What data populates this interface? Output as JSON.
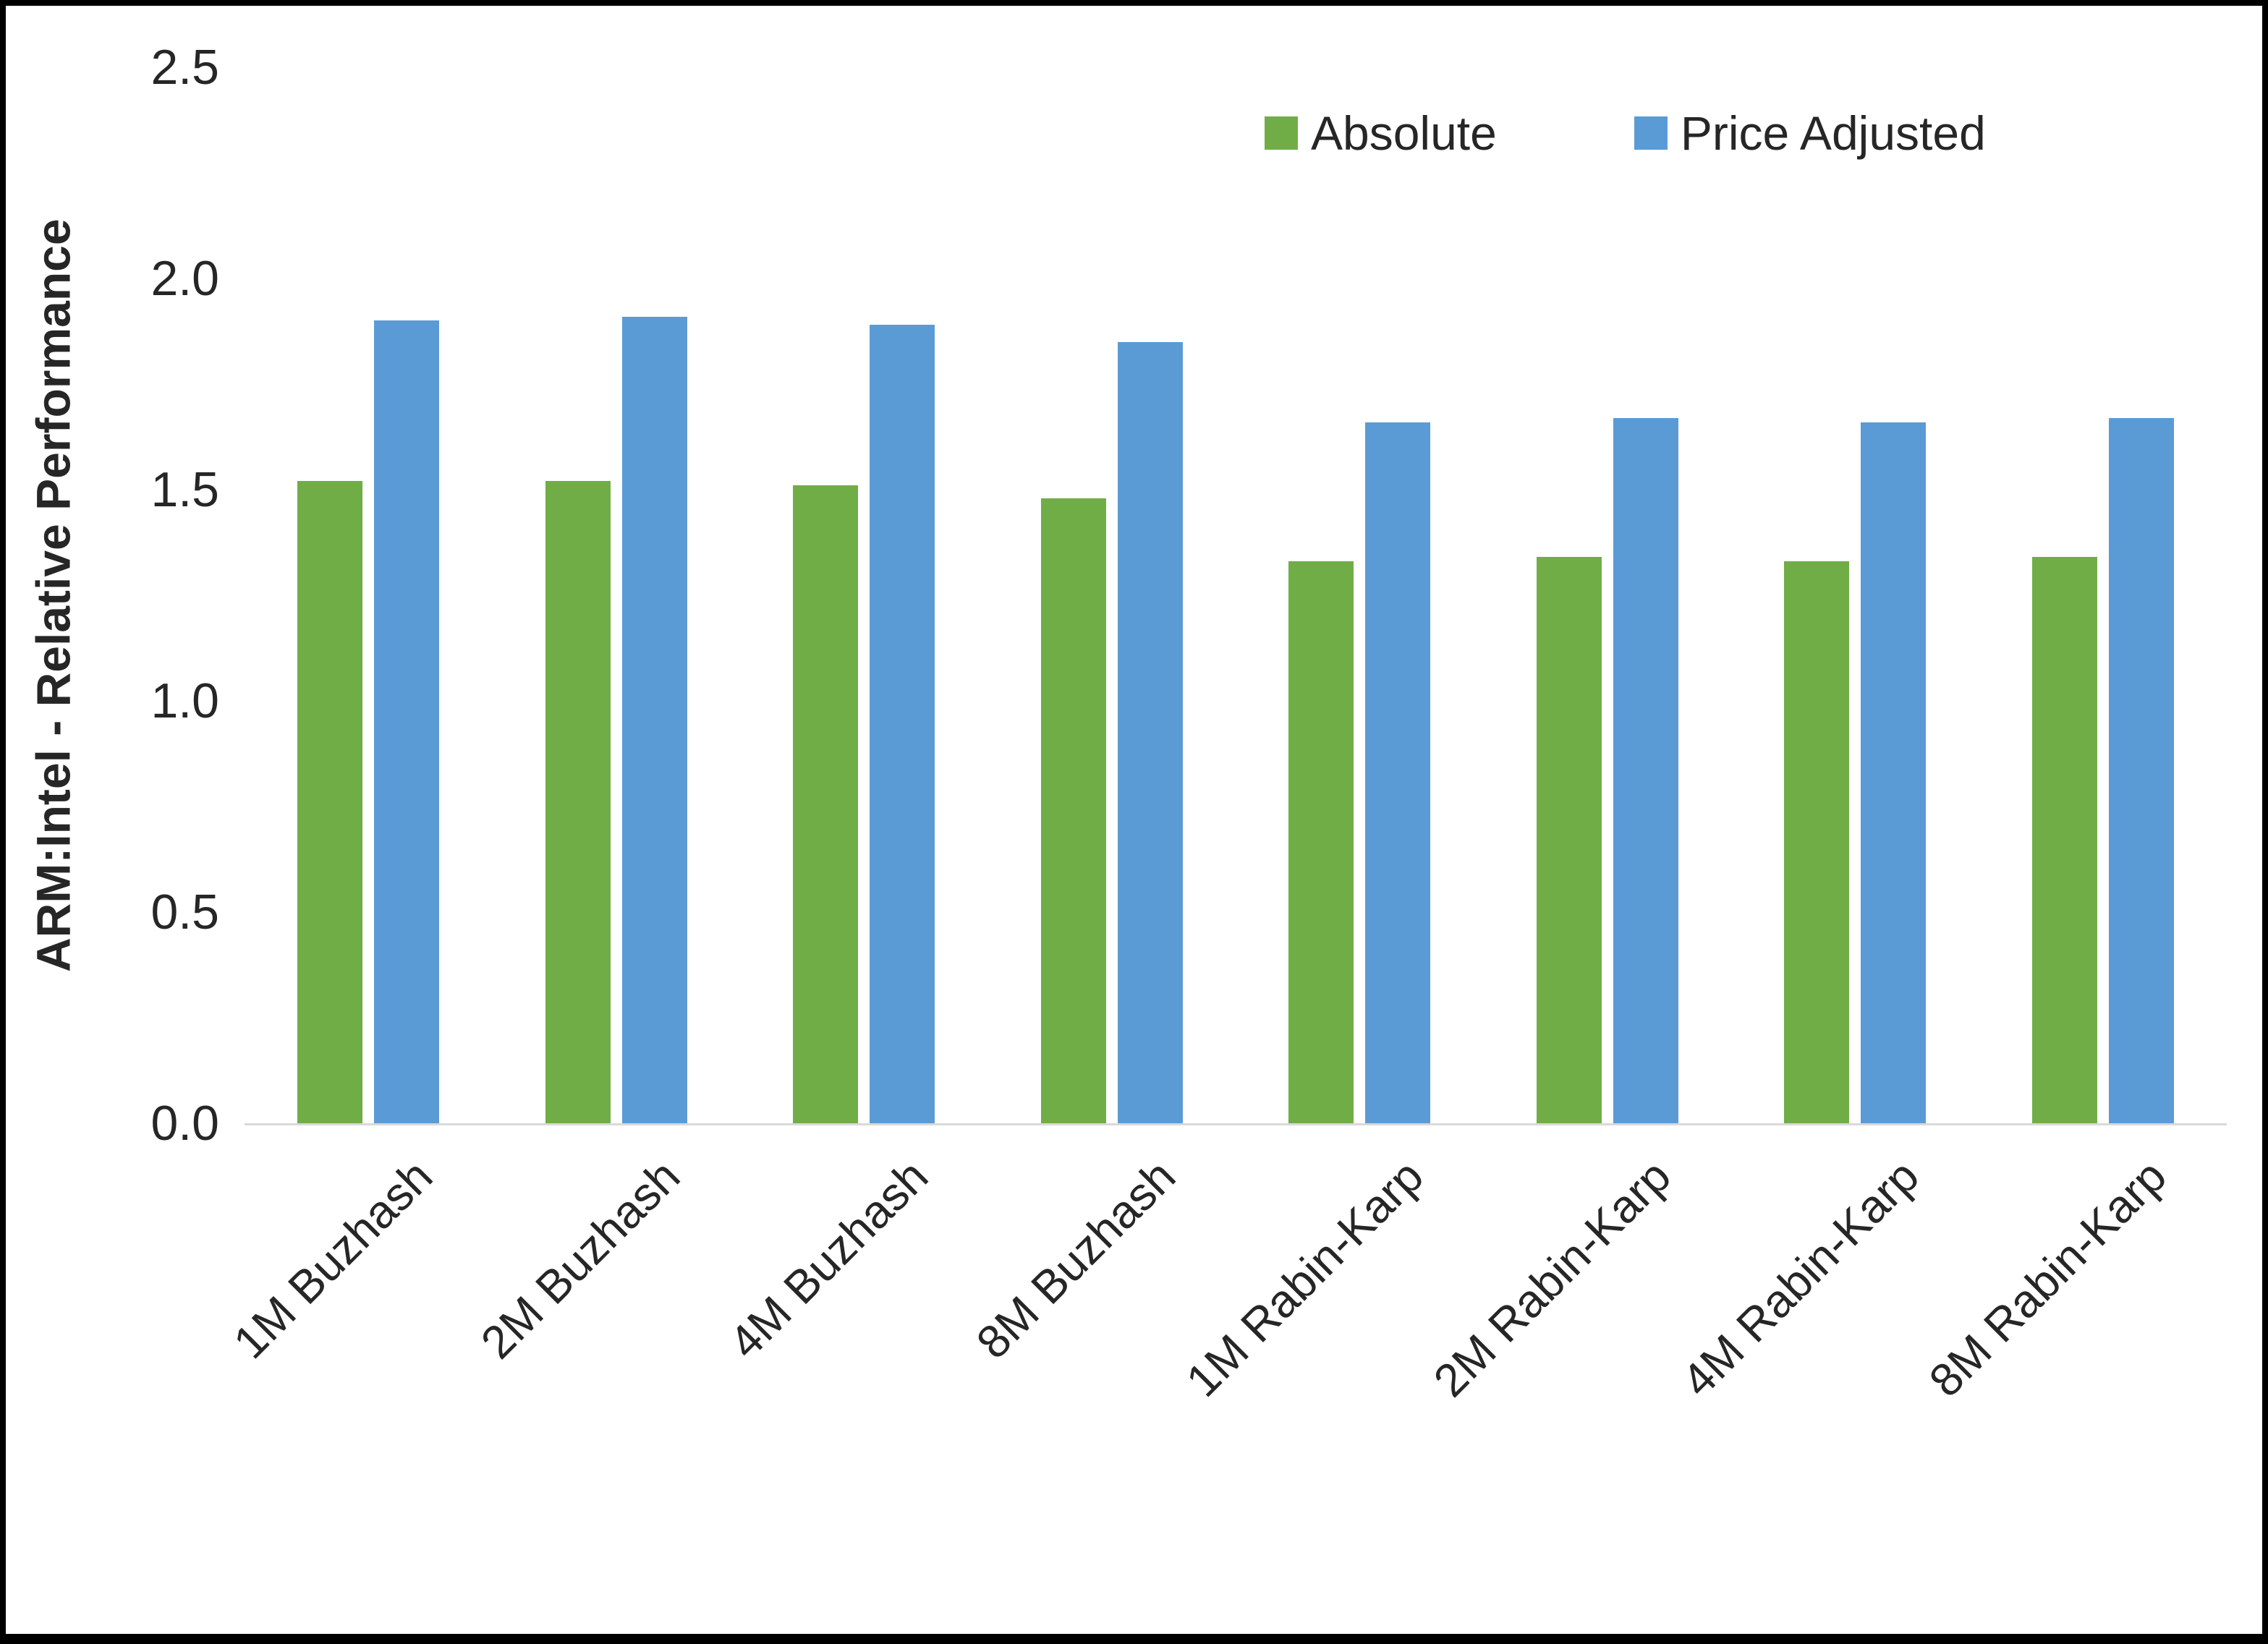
{
  "chart_data": {
    "type": "bar",
    "title": "",
    "xlabel": "",
    "ylabel": "ARM:Intel - Relative Performance",
    "ylim": [
      0,
      2.5
    ],
    "yticks": [
      "0.0",
      "0.5",
      "1.0",
      "1.5",
      "2.0",
      "2.5"
    ],
    "ytick_values": [
      0,
      0.5,
      1.0,
      1.5,
      2.0,
      2.5
    ],
    "grid": false,
    "legend_position": "top-right",
    "axis_line_color": "#d9d9d9",
    "text_color": "#262626",
    "categories": [
      "1M Buzhash",
      "2M Buzhash",
      "4M Buzhash",
      "8M Buzhash",
      "1M Rabin-Karp",
      "2M Rabin-Karp",
      "4M Rabin-Karp",
      "8M Rabin-Karp"
    ],
    "series": [
      {
        "name": "Absolute",
        "color": "#70AD47",
        "values": [
          1.52,
          1.52,
          1.51,
          1.48,
          1.33,
          1.34,
          1.33,
          1.34
        ]
      },
      {
        "name": "Price Adjusted",
        "color": "#5B9BD5",
        "values": [
          1.9,
          1.91,
          1.89,
          1.85,
          1.66,
          1.67,
          1.66,
          1.67
        ]
      }
    ]
  }
}
